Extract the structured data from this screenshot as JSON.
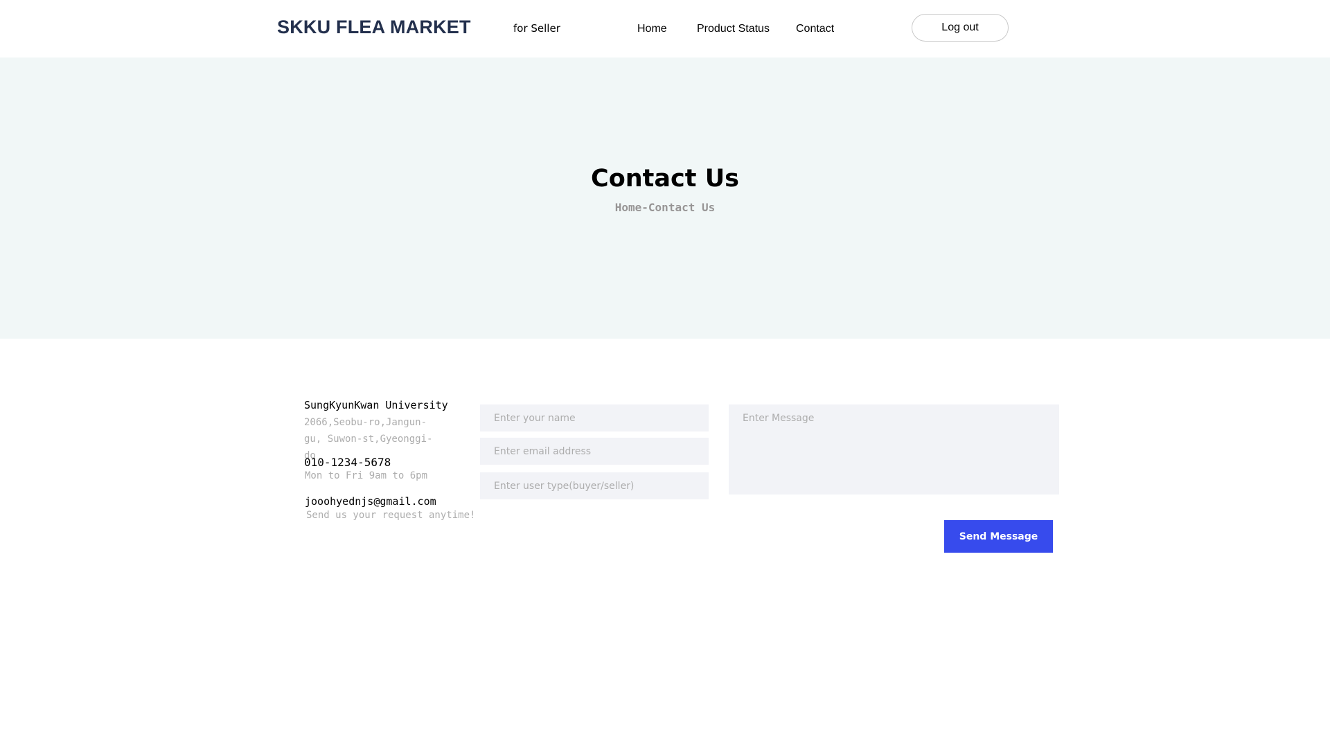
{
  "header": {
    "logo": "SKKU FLEA MARKET",
    "for_seller": "for Seller",
    "nav": {
      "home": "Home",
      "product_status": "Product Status",
      "contact": "Contact"
    },
    "logout_label": "Log out"
  },
  "hero": {
    "title": "Contact Us",
    "breadcrumb": "Home-Contact Us"
  },
  "contact_info": {
    "university": "SungKyunKwan University",
    "address": "2066,Seobu-ro,Jangun-gu, Suwon-st,Gyeonggi-do",
    "phone": "010-1234-5678",
    "hours": "Mon to Fri 9am to 6pm",
    "email": "jooohyednjs@gmail.com",
    "request_note": "Send us your request anytime!"
  },
  "form": {
    "name_placeholder": "Enter your name",
    "email_placeholder": "Enter email address",
    "type_placeholder": "Enter user type(buyer/seller)",
    "message_placeholder": "Enter Message",
    "send_label": "Send Message"
  },
  "colors": {
    "hero_bg": "#f1f7f7",
    "field_bg": "#f2f3f7",
    "button": "#374bed",
    "logo": "#23304d",
    "muted_text": "#adadad",
    "breadcrumb_text": "#979595"
  }
}
